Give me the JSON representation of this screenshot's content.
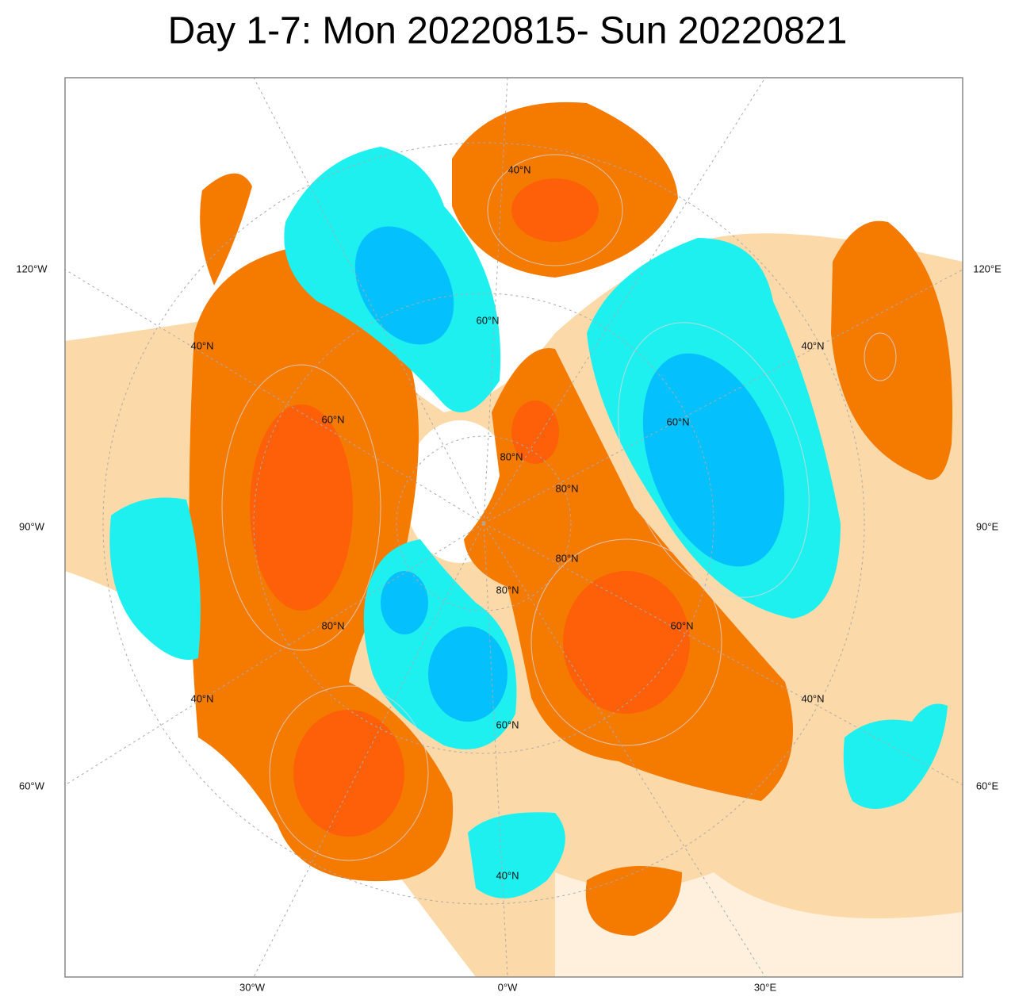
{
  "title": "Day 1-7: Mon 20220815- Sun 20220821",
  "left_labels": [
    "120°W",
    "90°W",
    "60°W"
  ],
  "right_labels": [
    "120°E",
    "90°E",
    "60°E"
  ],
  "bottom_labels": [
    "30°W",
    "0°W",
    "30°E"
  ],
  "lat_labels": [
    "40°N",
    "60°N",
    "40°N",
    "60°N",
    "60°N",
    "80°N",
    "60°N",
    "40°N",
    "40°N",
    "60°N",
    "40°N",
    "40°N",
    "80°N",
    "80°N",
    "80°N",
    "80°N"
  ]
}
